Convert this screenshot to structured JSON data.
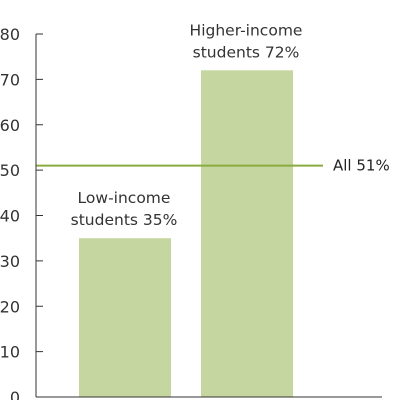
{
  "chart_data": {
    "type": "bar",
    "categories": [
      "Low-income students",
      "Higher-income students"
    ],
    "values": [
      35,
      72
    ],
    "bar_labels": [
      [
        "Low-income",
        "students 35%"
      ],
      [
        "Higher-income",
        "students 72%"
      ]
    ],
    "reference_line": {
      "value": 51,
      "label": "All 51%"
    },
    "yticks": [
      "0",
      "10",
      "20",
      "30",
      "40",
      "50",
      "60",
      "70",
      "80"
    ],
    "ylim": [
      0,
      80
    ],
    "title": "",
    "xlabel": "",
    "ylabel": "",
    "grid": false,
    "colors": {
      "bar": "#c5d6a0",
      "reference_line": "#8aab3f",
      "axis": "#333333"
    }
  }
}
